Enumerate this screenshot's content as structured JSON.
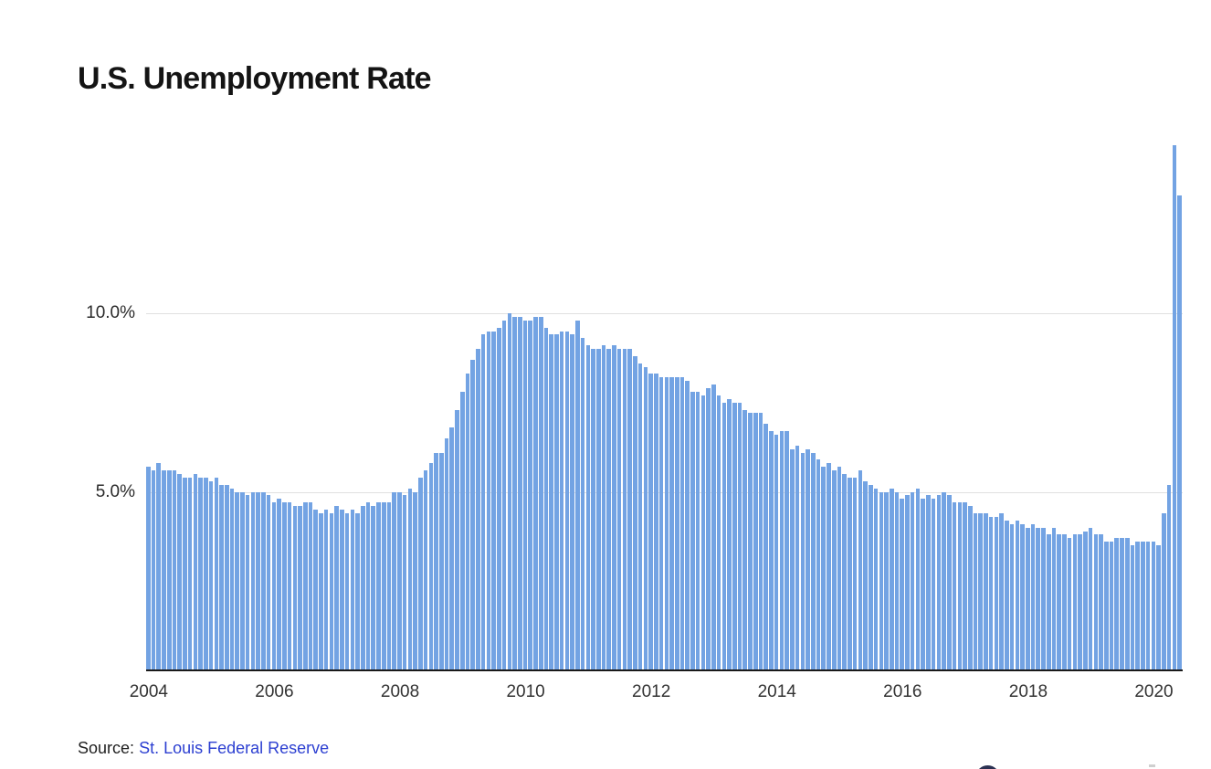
{
  "header": {
    "title": "U.S. Unemployment Rate"
  },
  "chart_data": {
    "type": "bar",
    "title": "U.S. Unemployment Rate",
    "unit": "%",
    "frequency": "monthly",
    "start_month": "2004-01",
    "end_month": "2020-06",
    "grid": "horizontal",
    "legend_position": "none",
    "bar_color": "#73a3e3",
    "gridline_color": "#e0e0e0",
    "axis_line_color": "#1a1a1a",
    "y_axis": {
      "min": 0,
      "max_visible_value": 14.7,
      "ticks": [
        {
          "label": "5.0%",
          "value": 5
        },
        {
          "label": "10.0%",
          "value": 10
        }
      ]
    },
    "x_axis": {
      "tick_years": [
        2004,
        2006,
        2008,
        2010,
        2012,
        2014,
        2016,
        2018,
        2020
      ]
    },
    "values": [
      5.7,
      5.6,
      5.8,
      5.6,
      5.6,
      5.6,
      5.5,
      5.4,
      5.4,
      5.5,
      5.4,
      5.4,
      5.3,
      5.4,
      5.2,
      5.2,
      5.1,
      5.0,
      5.0,
      4.9,
      5.0,
      5.0,
      5.0,
      4.9,
      4.7,
      4.8,
      4.7,
      4.7,
      4.6,
      4.6,
      4.7,
      4.7,
      4.5,
      4.4,
      4.5,
      4.4,
      4.6,
      4.5,
      4.4,
      4.5,
      4.4,
      4.6,
      4.7,
      4.6,
      4.7,
      4.7,
      4.7,
      5.0,
      5.0,
      4.9,
      5.1,
      5.0,
      5.4,
      5.6,
      5.8,
      6.1,
      6.1,
      6.5,
      6.8,
      7.3,
      7.8,
      8.3,
      8.7,
      9.0,
      9.4,
      9.5,
      9.5,
      9.6,
      9.8,
      10.0,
      9.9,
      9.9,
      9.8,
      9.8,
      9.9,
      9.9,
      9.6,
      9.4,
      9.4,
      9.5,
      9.5,
      9.4,
      9.8,
      9.3,
      9.1,
      9.0,
      9.0,
      9.1,
      9.0,
      9.1,
      9.0,
      9.0,
      9.0,
      8.8,
      8.6,
      8.5,
      8.3,
      8.3,
      8.2,
      8.2,
      8.2,
      8.2,
      8.2,
      8.1,
      7.8,
      7.8,
      7.7,
      7.9,
      8.0,
      7.7,
      7.5,
      7.6,
      7.5,
      7.5,
      7.3,
      7.2,
      7.2,
      7.2,
      6.9,
      6.7,
      6.6,
      6.7,
      6.7,
      6.2,
      6.3,
      6.1,
      6.2,
      6.1,
      5.9,
      5.7,
      5.8,
      5.6,
      5.7,
      5.5,
      5.4,
      5.4,
      5.6,
      5.3,
      5.2,
      5.1,
      5.0,
      5.0,
      5.1,
      5.0,
      4.8,
      4.9,
      5.0,
      5.1,
      4.8,
      4.9,
      4.8,
      4.9,
      5.0,
      4.9,
      4.7,
      4.7,
      4.7,
      4.6,
      4.4,
      4.4,
      4.4,
      4.3,
      4.3,
      4.4,
      4.2,
      4.1,
      4.2,
      4.1,
      4.0,
      4.1,
      4.0,
      4.0,
      3.8,
      4.0,
      3.8,
      3.8,
      3.7,
      3.8,
      3.8,
      3.9,
      4.0,
      3.8,
      3.8,
      3.6,
      3.6,
      3.7,
      3.7,
      3.7,
      3.5,
      3.6,
      3.6,
      3.6,
      3.6,
      3.5,
      4.4,
      5.2,
      14.7,
      13.3
    ]
  },
  "footer": {
    "source_label": "Source:",
    "source_link_text": "St. Louis Federal Reserve",
    "link_color": "#2c3fd1"
  },
  "branding": {
    "logo": "datawrapper-logo",
    "logo_color": "#2b3152"
  }
}
